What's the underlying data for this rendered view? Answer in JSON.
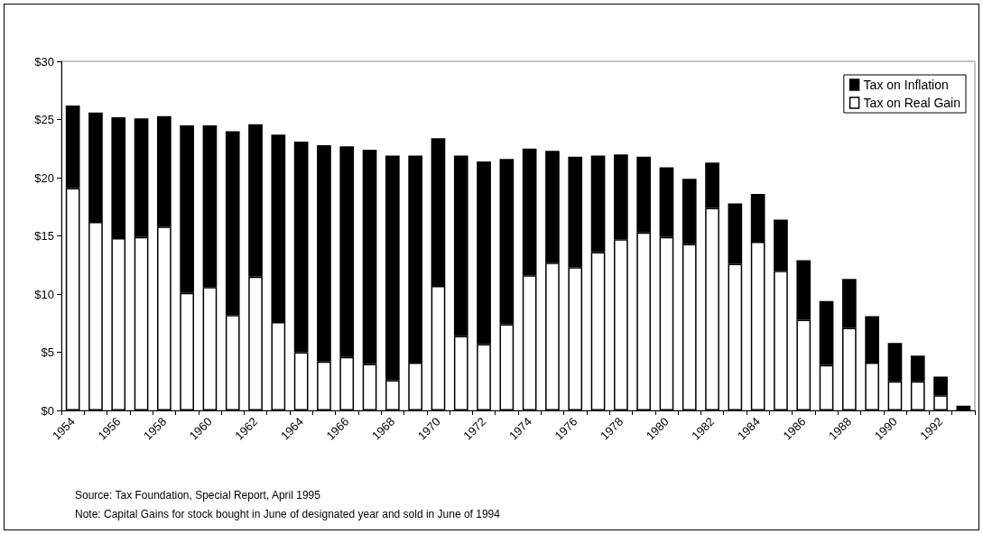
{
  "chart_data": {
    "type": "bar",
    "stacked": true,
    "categories": [
      "1954",
      null,
      "1956",
      null,
      "1958",
      null,
      "1960",
      null,
      "1962",
      null,
      "1964",
      null,
      "1966",
      null,
      "1968",
      null,
      "1970",
      null,
      "1972",
      null,
      "1974",
      null,
      "1976",
      null,
      "1978",
      null,
      "1980",
      null,
      "1982",
      null,
      "1984",
      null,
      "1986",
      null,
      "1988",
      null,
      "1990",
      null,
      "1992",
      null
    ],
    "series": [
      {
        "name": "Tax on Real Gain",
        "color": "#ffffff",
        "values": [
          19.1,
          16.2,
          14.8,
          14.9,
          15.8,
          10.1,
          10.6,
          8.2,
          11.5,
          7.6,
          5.0,
          4.2,
          4.6,
          4.0,
          2.6,
          4.1,
          10.7,
          6.4,
          5.7,
          7.4,
          11.6,
          12.7,
          12.3,
          13.6,
          14.7,
          15.3,
          14.9,
          14.3,
          17.4,
          12.6,
          14.5,
          12.0,
          7.8,
          3.9,
          7.1,
          4.1,
          2.5,
          2.5,
          1.3,
          0
        ]
      },
      {
        "name": "Tax on Inflation",
        "color": "#000000",
        "values": [
          7.1,
          9.4,
          10.4,
          10.2,
          9.5,
          14.4,
          13.9,
          15.8,
          13.1,
          16.1,
          18.1,
          18.6,
          18.1,
          18.4,
          19.3,
          17.8,
          12.7,
          15.5,
          15.7,
          14.2,
          10.9,
          9.6,
          9.5,
          8.3,
          7.3,
          6.5,
          6.0,
          5.6,
          3.9,
          5.2,
          4.1,
          4.4,
          5.1,
          5.5,
          4.2,
          4.0,
          3.3,
          2.2,
          1.6,
          0.4
        ]
      }
    ],
    "ylim": [
      0,
      30
    ],
    "yticks": [
      {
        "value": 0,
        "label": "$0"
      },
      {
        "value": 5,
        "label": "$5"
      },
      {
        "value": 10,
        "label": "$10"
      },
      {
        "value": 15,
        "label": "$15"
      },
      {
        "value": 20,
        "label": "$20"
      },
      {
        "value": 25,
        "label": "$25"
      },
      {
        "value": 30,
        "label": "$30"
      }
    ],
    "grid": false,
    "legend": "top right",
    "annotations": [
      "Source: Tax Foundation, Special Report, April 1995",
      "Note: Capital Gains for stock bought in June of designated year and sold in June of 1994"
    ]
  }
}
